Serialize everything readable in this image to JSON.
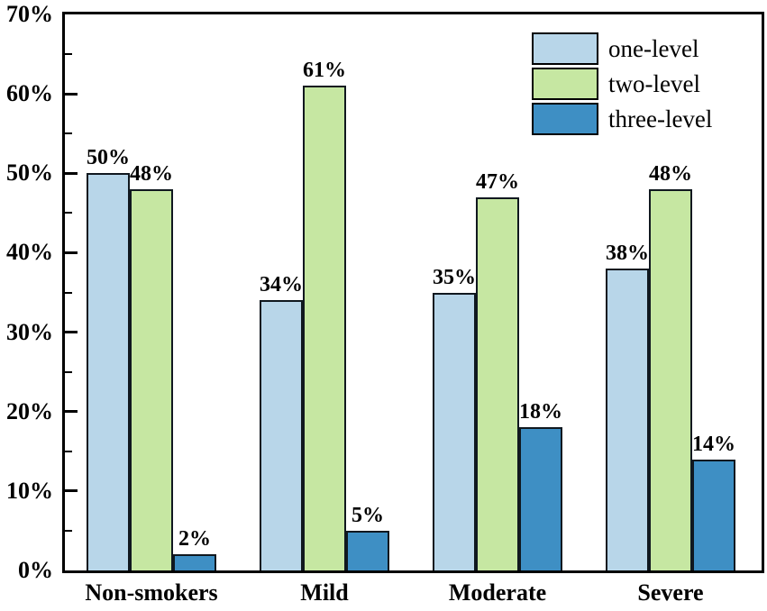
{
  "chart_data": {
    "type": "bar",
    "categories": [
      "Non-smokers",
      "Mild",
      "Moderate",
      "Severe"
    ],
    "series": [
      {
        "name": "one-level",
        "color": "#b8d6e9",
        "values": [
          50,
          34,
          35,
          38
        ]
      },
      {
        "name": "two-level",
        "color": "#c6e7a2",
        "values": [
          48,
          61,
          47,
          48
        ]
      },
      {
        "name": "three-level",
        "color": "#3e8fc4",
        "values": [
          2,
          5,
          18,
          14
        ]
      }
    ],
    "value_labels": [
      [
        "50%",
        "34%",
        "35%",
        "38%"
      ],
      [
        "48%",
        "61%",
        "47%",
        "48%"
      ],
      [
        "2%",
        "5%",
        "18%",
        "14%"
      ]
    ],
    "title": "",
    "xlabel": "",
    "ylabel": "",
    "ylim": [
      0,
      70
    ],
    "ytick_step": 10,
    "minor_tick_step": 5,
    "ytick_labels": [
      "0%",
      "10%",
      "20%",
      "30%",
      "40%",
      "50%",
      "60%",
      "70%"
    ],
    "legend_entries": [
      "one-level",
      "two-level",
      "three-level"
    ],
    "legend_position": "top-right-inside",
    "grid": false,
    "bar_border_color": "#10181f",
    "axis_color": "#000000"
  }
}
